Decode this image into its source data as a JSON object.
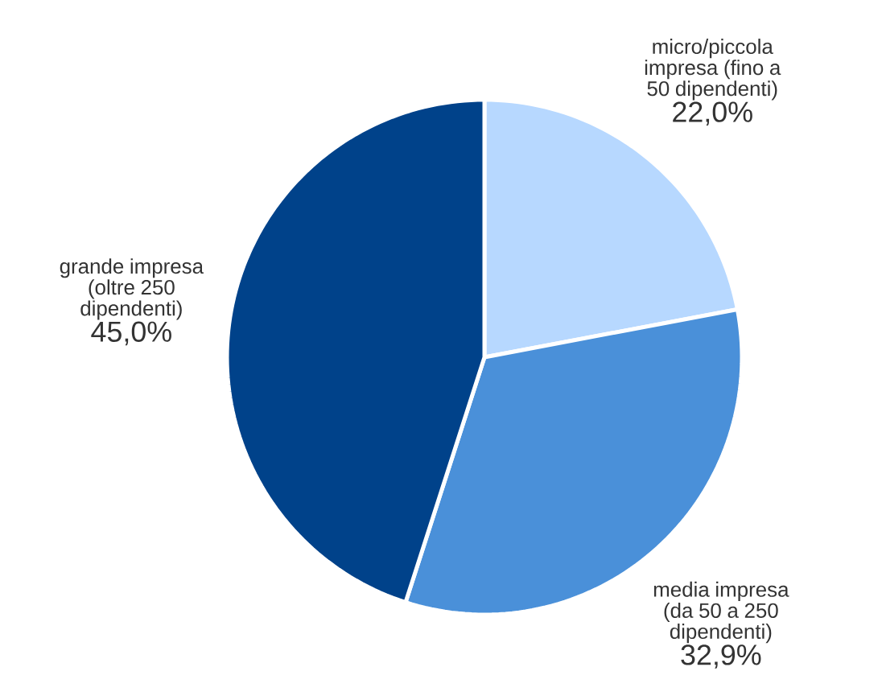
{
  "chart_data": {
    "type": "pie",
    "categories": [
      "micro/piccola impresa (fino a 50 dipendenti)",
      "media impresa (da 50 a 250 dipendenti)",
      "grande impresa (oltre 250 dipendenti)"
    ],
    "values": [
      22.0,
      32.9,
      45.0
    ],
    "colors": [
      "#b7d8ff",
      "#4a90d9",
      "#00428a"
    ],
    "value_labels": [
      "22,0%",
      "32,9%",
      "45,0%"
    ]
  }
}
